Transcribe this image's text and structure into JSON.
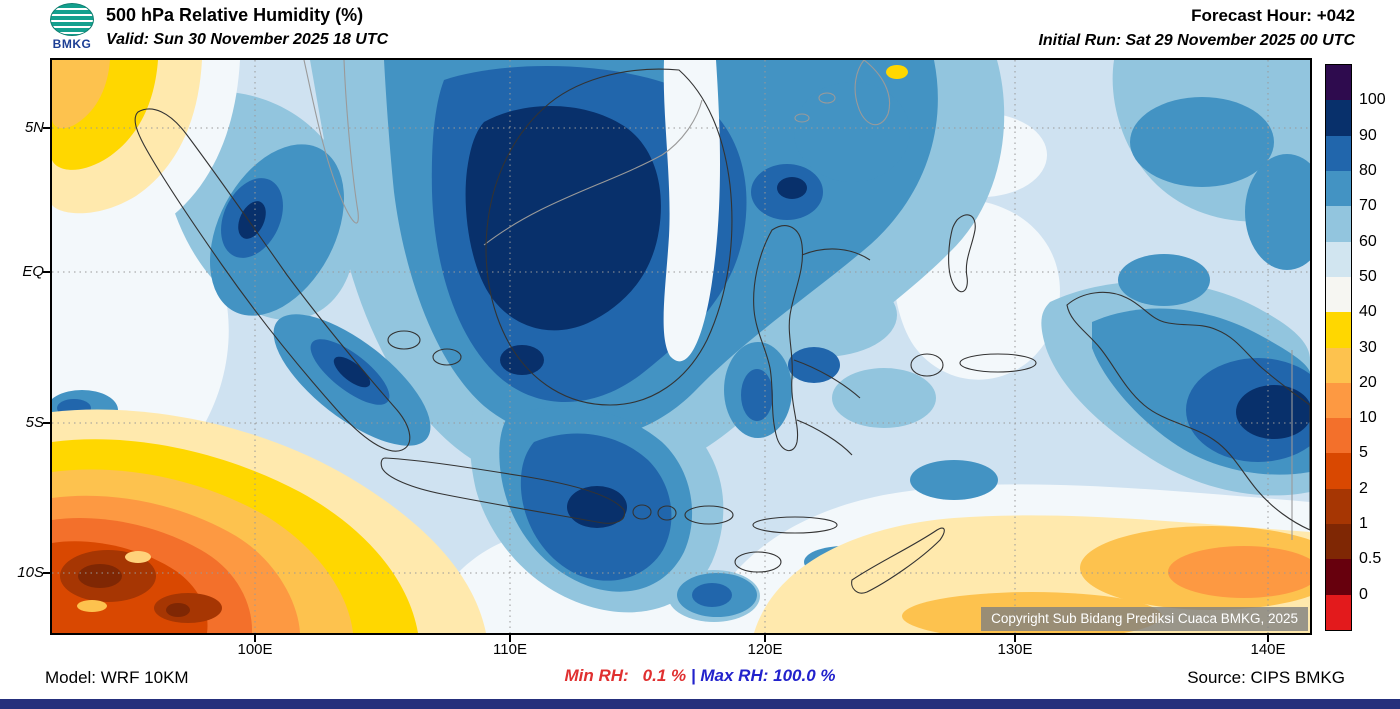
{
  "header": {
    "logo_label": "BMKG",
    "title": "500 hPa Relative Humidity (%)",
    "valid": "Valid: Sun 30 November 2025 18 UTC",
    "forecast_hour": "Forecast Hour: +042",
    "initial_run": "Initial Run: Sat 29 November 2025 00 UTC"
  },
  "map": {
    "lat_labels": [
      "5N",
      "EQ",
      "5S",
      "10S"
    ],
    "lon_labels": [
      "100E",
      "110E",
      "120E",
      "130E",
      "140E"
    ],
    "copyright": "Copyright Sub Bidang Prediksi Cuaca BMKG, 2025"
  },
  "colorbar": {
    "tick_labels": [
      "100",
      "90",
      "80",
      "70",
      "60",
      "50",
      "40",
      "30",
      "20",
      "10",
      "5",
      "2",
      "1",
      "0.5",
      "0"
    ],
    "colors": [
      "#2e0b4e",
      "#08306b",
      "#2166ac",
      "#4393c3",
      "#92c5de",
      "#d1e5f0",
      "#f6f6f2",
      "#ffd700",
      "#fdc24e",
      "#fd9942",
      "#f3702b",
      "#d94801",
      "#a63603",
      "#7f2704",
      "#67000d",
      "#e31a1c"
    ]
  },
  "footer": {
    "model": "Model: WRF 10KM",
    "min_label": "Min RH:",
    "min_value": "0.1 %",
    "separator": "|",
    "max_label": "Max RH:",
    "max_value": "100.0 %",
    "source": "Source: CIPS BMKG"
  },
  "colors": {
    "min_rh": "#e03030",
    "max_rh": "#2222cc",
    "bottom_bar": "#252f7c"
  }
}
